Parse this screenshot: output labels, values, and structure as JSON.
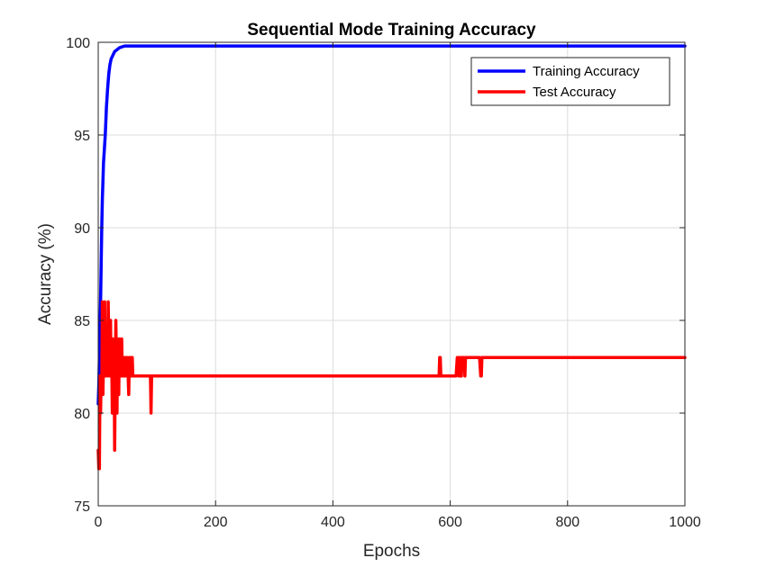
{
  "chart_data": {
    "type": "line",
    "title": "Sequential Mode Training Accuracy",
    "xlabel": "Epochs",
    "ylabel": "Accuracy (%)",
    "xlim": [
      0,
      1000
    ],
    "ylim": [
      75,
      100
    ],
    "xticks": [
      0,
      200,
      400,
      600,
      800,
      1000
    ],
    "yticks": [
      75,
      80,
      85,
      90,
      95,
      100
    ],
    "grid": true,
    "legend_location": "top-right",
    "series": [
      {
        "name": "Training Accuracy",
        "color": "#0000ff",
        "x": [
          0,
          1,
          2,
          3,
          4,
          5,
          6,
          7,
          8,
          9,
          10,
          12,
          14,
          16,
          18,
          20,
          22,
          25,
          28,
          32,
          36,
          40,
          45,
          50,
          60,
          80,
          100,
          200,
          400,
          600,
          800,
          1000
        ],
        "y": [
          80.5,
          81.5,
          83,
          84.5,
          86,
          88,
          90,
          91.5,
          92.5,
          93.5,
          94,
          95,
          96.5,
          97.5,
          98.3,
          98.8,
          99.1,
          99.3,
          99.5,
          99.6,
          99.7,
          99.75,
          99.8,
          99.8,
          99.8,
          99.8,
          99.8,
          99.8,
          99.8,
          99.8,
          99.8,
          99.8
        ]
      },
      {
        "name": "Test Accuracy",
        "color": "#ff0000",
        "x": [
          0,
          1,
          2,
          3,
          4,
          5,
          6,
          7,
          8,
          9,
          10,
          11,
          12,
          13,
          14,
          15,
          16,
          17,
          18,
          19,
          20,
          21,
          22,
          23,
          24,
          25,
          26,
          27,
          28,
          29,
          30,
          31,
          32,
          33,
          34,
          35,
          36,
          37,
          38,
          39,
          40,
          41,
          42,
          43,
          44,
          45,
          46,
          47,
          48,
          49,
          50,
          51,
          52,
          53,
          54,
          55,
          56,
          57,
          58,
          59,
          60,
          61,
          62,
          63,
          64,
          65,
          66,
          67,
          68,
          70,
          75,
          80,
          85,
          88,
          89,
          90,
          91,
          92,
          100,
          200,
          300,
          400,
          500,
          580,
          581,
          582,
          583,
          584,
          585,
          586,
          600,
          610,
          612,
          613,
          614,
          615,
          616,
          617,
          618,
          619,
          620,
          621,
          622,
          623,
          624,
          625,
          626,
          627,
          628,
          630,
          640,
          650,
          652,
          653,
          654,
          655,
          656,
          657,
          658,
          660,
          700,
          800,
          900,
          1000
        ],
        "y": [
          78,
          77,
          77,
          82,
          80,
          82,
          81,
          86,
          81,
          83,
          84,
          86,
          82,
          83,
          84,
          83,
          82,
          86,
          84,
          83,
          82,
          85,
          82,
          83,
          80,
          84,
          82,
          83,
          78,
          82,
          85,
          83,
          80,
          84,
          82,
          81,
          84,
          83,
          82,
          83,
          84,
          82,
          83,
          82,
          82,
          83,
          82,
          83,
          83,
          83,
          82,
          82,
          81,
          83,
          83,
          82,
          82,
          83,
          83,
          82,
          82,
          82,
          82,
          82,
          82,
          82,
          82,
          82,
          82,
          82,
          82,
          82,
          82,
          82,
          82,
          80,
          82,
          82,
          82,
          82,
          82,
          82,
          82,
          82,
          82,
          83,
          83,
          82,
          82,
          82,
          82,
          82,
          83,
          83,
          83,
          82,
          83,
          83,
          82,
          82,
          83,
          83,
          83,
          83,
          83,
          82,
          83,
          83,
          83,
          83,
          83,
          83,
          82,
          82,
          83,
          83,
          83,
          83,
          83,
          83,
          83,
          83,
          83,
          83
        ]
      }
    ]
  }
}
